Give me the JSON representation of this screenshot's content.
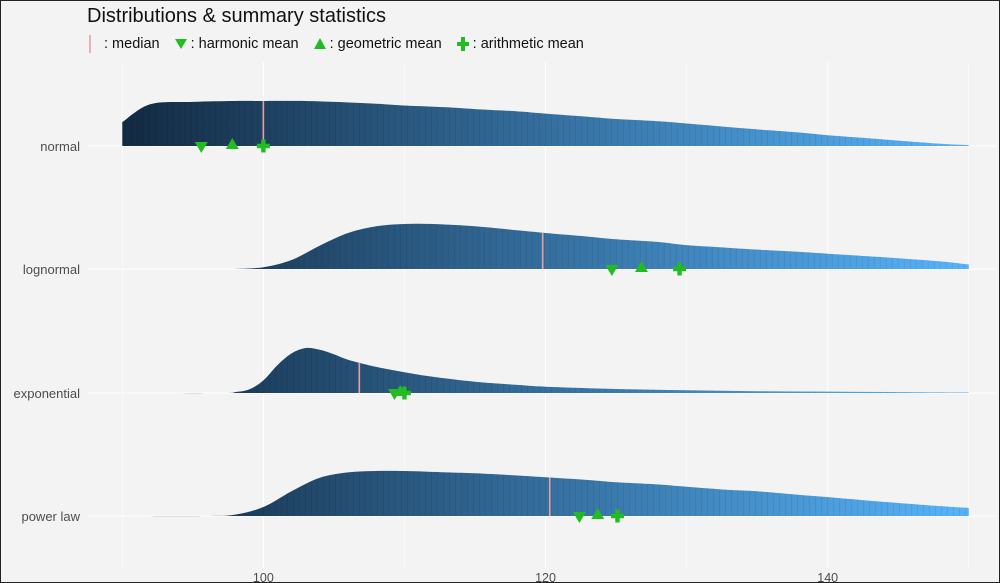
{
  "chart_data": {
    "type": "ridgeline",
    "title": "Distributions & summary statistics",
    "xlabel": "",
    "ylabel": "",
    "xlim": [
      87.5,
      152
    ],
    "x_ticks": [
      100,
      120,
      140
    ],
    "x_tick_labels": [
      "100",
      "120",
      "140"
    ],
    "legend": [
      {
        "symbol": "median",
        "label": ": median"
      },
      {
        "symbol": "harmonic",
        "label": ": harmonic mean"
      },
      {
        "symbol": "geometric",
        "label": ": geometric mean"
      },
      {
        "symbol": "arithmetic",
        "label": ": arithmetic mean"
      }
    ],
    "colors": {
      "fill_low": "#132b43",
      "fill_high": "#56b1f7",
      "median": "#e8a0a0",
      "stats": "#22bb22",
      "grid": "#ffffff",
      "axis_text": "#4d4d4d"
    },
    "series": [
      {
        "name": "normal",
        "density_x": [
          90,
          92,
          95,
          98,
          100,
          103,
          105,
          108,
          110,
          113,
          115,
          118,
          120,
          123,
          125,
          128,
          130,
          133,
          135,
          138,
          140,
          143,
          145,
          148,
          150
        ],
        "density_y": [
          0.53,
          0.93,
          0.98,
          1.0,
          1.0,
          1.0,
          0.98,
          0.94,
          0.9,
          0.86,
          0.82,
          0.77,
          0.72,
          0.65,
          0.6,
          0.55,
          0.5,
          0.42,
          0.37,
          0.3,
          0.24,
          0.17,
          0.12,
          0.05,
          0.02
        ],
        "median": 100,
        "harmonic_mean": 95.6,
        "geometric_mean": 97.8,
        "arithmetic_mean": 100
      },
      {
        "name": "lognormal",
        "density_x": [
          98,
          100,
          102,
          104,
          106,
          108,
          110,
          112,
          115,
          118,
          120,
          123,
          125,
          128,
          130,
          133,
          135,
          138,
          140,
          143,
          145,
          148,
          150
        ],
        "density_y": [
          0.0,
          0.04,
          0.2,
          0.52,
          0.8,
          0.95,
          1.0,
          1.0,
          0.95,
          0.86,
          0.8,
          0.72,
          0.66,
          0.6,
          0.53,
          0.47,
          0.43,
          0.38,
          0.34,
          0.28,
          0.24,
          0.17,
          0.1
        ],
        "median": 119.8,
        "harmonic_mean": 124.7,
        "geometric_mean": 126.8,
        "arithmetic_mean": 129.5
      },
      {
        "name": "exponential",
        "density_x": [
          90,
          97,
          98,
          99,
          100,
          101,
          102,
          103,
          104,
          105,
          106,
          108,
          110,
          112,
          115,
          118,
          120,
          125,
          130,
          135,
          140,
          145,
          150
        ],
        "density_y": [
          0.0,
          0.0,
          0.02,
          0.08,
          0.28,
          0.62,
          0.88,
          1.0,
          0.96,
          0.86,
          0.74,
          0.58,
          0.46,
          0.36,
          0.25,
          0.18,
          0.14,
          0.09,
          0.06,
          0.04,
          0.03,
          0.02,
          0.01
        ],
        "median": 106.8,
        "harmonic_mean": 109.3,
        "geometric_mean": 109.7,
        "arithmetic_mean": 110.0
      },
      {
        "name": "power law",
        "density_x": [
          90,
          96,
          98,
          100,
          102,
          104,
          106,
          108,
          110,
          113,
          115,
          118,
          120,
          123,
          125,
          128,
          130,
          133,
          135,
          138,
          140,
          143,
          145,
          148,
          150
        ],
        "density_y": [
          0.0,
          0.0,
          0.03,
          0.2,
          0.55,
          0.85,
          0.97,
          1.0,
          1.0,
          0.97,
          0.95,
          0.9,
          0.86,
          0.8,
          0.75,
          0.7,
          0.65,
          0.58,
          0.55,
          0.47,
          0.42,
          0.34,
          0.29,
          0.22,
          0.18
        ],
        "median": 120.3,
        "harmonic_mean": 122.4,
        "geometric_mean": 123.7,
        "arithmetic_mean": 125.1
      }
    ]
  }
}
